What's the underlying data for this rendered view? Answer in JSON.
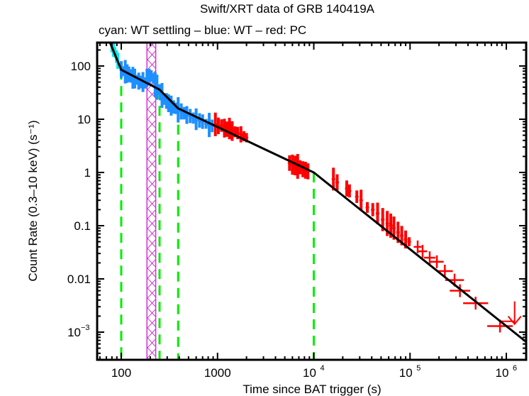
{
  "chart_data": {
    "type": "scatter",
    "title": "Swift/XRT data of GRB 140419A",
    "subtitle": "cyan: WT settling – blue: WT – red: PC",
    "xlabel": "Time since BAT trigger (s)",
    "ylabel": "Count Rate (0.3–10 keV) (s⁻¹)",
    "xscale": "log",
    "yscale": "log",
    "xlim": [
      57,
      1600000
    ],
    "ylim": [
      0.0003,
      280
    ],
    "x_ticks": [
      {
        "value": 100,
        "label": "100"
      },
      {
        "value": 1000,
        "label": "1000"
      },
      {
        "value": 10000,
        "label": "10",
        "exp": "4"
      },
      {
        "value": 100000,
        "label": "10",
        "exp": "5"
      },
      {
        "value": 1000000,
        "label": "10",
        "exp": "6"
      }
    ],
    "y_ticks": [
      {
        "value": 100,
        "label": "100"
      },
      {
        "value": 10,
        "label": "10"
      },
      {
        "value": 1,
        "label": "1"
      },
      {
        "value": 0.1,
        "label": "0.1"
      },
      {
        "value": 0.01,
        "label": "0.01"
      },
      {
        "value": 0.001,
        "label": "10",
        "exp": "−3"
      }
    ],
    "colors": {
      "wt_settling": "#00e5ee",
      "wt": "#1e8fff",
      "pc": "#ff0000",
      "model": "#000000",
      "breaks": "#00ee00",
      "flare_box": "#d52fd5"
    },
    "series": [
      {
        "name": "WT settling",
        "color": "cyan",
        "points": [
          [
            80,
            260
          ],
          [
            83,
            220
          ],
          [
            86,
            180
          ],
          [
            89,
            150
          ],
          [
            92,
            125
          ]
        ]
      },
      {
        "name": "WT",
        "color": "blue",
        "points": [
          [
            100,
            85
          ],
          [
            105,
            80
          ],
          [
            110,
            78
          ],
          [
            115,
            72
          ],
          [
            120,
            70
          ],
          [
            126,
            65
          ],
          [
            132,
            60
          ],
          [
            138,
            58
          ],
          [
            145,
            55
          ],
          [
            152,
            52
          ],
          [
            160,
            50
          ],
          [
            168,
            50
          ],
          [
            176,
            48
          ],
          [
            185,
            60
          ],
          [
            195,
            62
          ],
          [
            205,
            65
          ],
          [
            215,
            58
          ],
          [
            225,
            45
          ],
          [
            235,
            40
          ],
          [
            245,
            36
          ],
          [
            255,
            32
          ],
          [
            265,
            28
          ],
          [
            280,
            24
          ],
          [
            295,
            22
          ],
          [
            310,
            20
          ],
          [
            330,
            18
          ],
          [
            350,
            17
          ],
          [
            370,
            16
          ],
          [
            390,
            15
          ],
          [
            420,
            14
          ],
          [
            450,
            13
          ],
          [
            480,
            12
          ],
          [
            520,
            11.5
          ],
          [
            560,
            10.5
          ],
          [
            600,
            10
          ],
          [
            650,
            9.5
          ],
          [
            700,
            9
          ],
          [
            760,
            8.2
          ],
          [
            820,
            7.8
          ],
          [
            880,
            7.5
          ]
        ]
      },
      {
        "name": "PC",
        "color": "red",
        "points": [
          [
            950,
            8
          ],
          [
            1020,
            7.5
          ],
          [
            1100,
            7.6
          ],
          [
            1180,
            6.8
          ],
          [
            1250,
            6.5
          ],
          [
            1330,
            6.7
          ],
          [
            1420,
            6
          ],
          [
            1520,
            5.8
          ],
          [
            1620,
            5.5
          ],
          [
            1750,
            5.2
          ],
          [
            1880,
            4.8
          ],
          [
            2000,
            4.5
          ],
          [
            5600,
            1.5
          ],
          [
            6000,
            1.4
          ],
          [
            6400,
            1.35
          ],
          [
            6800,
            1.3
          ],
          [
            7200,
            1.25
          ],
          [
            7700,
            1.15
          ],
          [
            8200,
            1.1
          ],
          [
            8700,
            1.05
          ],
          [
            16000,
            0.75
          ],
          [
            17500,
            0.65
          ],
          [
            22000,
            0.5
          ],
          [
            23500,
            0.45
          ],
          [
            28000,
            0.35
          ],
          [
            31000,
            0.3
          ],
          [
            36000,
            0.22
          ],
          [
            41000,
            0.2
          ],
          [
            46000,
            0.17
          ],
          [
            52000,
            0.13
          ],
          [
            58000,
            0.11
          ],
          [
            63000,
            0.1
          ],
          [
            68000,
            0.09
          ],
          [
            75000,
            0.075
          ],
          [
            82000,
            0.065
          ],
          [
            90000,
            0.055
          ],
          [
            98000,
            0.05
          ],
          [
            120000,
            0.04
          ],
          [
            135000,
            0.033
          ],
          [
            160000,
            0.025
          ],
          [
            190000,
            0.021
          ],
          [
            230000,
            0.014
          ],
          [
            290000,
            0.0095
          ],
          [
            330000,
            0.006
          ],
          [
            480000,
            0.0035
          ],
          [
            860000,
            0.0013
          ]
        ]
      },
      {
        "name": "PC upper limit",
        "color": "red",
        "points": [
          [
            1220000,
            0.0016
          ]
        ]
      }
    ],
    "model": {
      "name": "Broken power-law fit",
      "points": [
        [
          75,
          300
        ],
        [
          100,
          85
        ],
        [
          250,
          36
        ],
        [
          390,
          16
        ],
        [
          10000,
          1.0
        ],
        [
          1600000,
          0.00066
        ]
      ]
    },
    "break_times": [
      100,
      250,
      390,
      10000
    ],
    "flare_exclusion": [
      185,
      228
    ]
  }
}
